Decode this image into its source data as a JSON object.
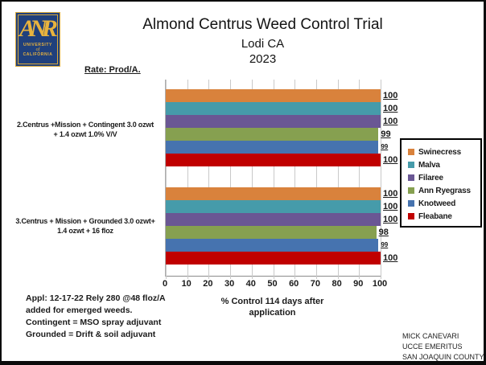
{
  "logo": {
    "monogram": "ANR",
    "line1": "UNIVERSITY",
    "line2": "of",
    "line3": "CALIFORNIA"
  },
  "header": {
    "title": "Almond Centrus Weed Control Trial",
    "subtitle": "Lodi CA",
    "year": "2023"
  },
  "rate_label": "Rate:  Prod/A.",
  "chart_data": {
    "type": "bar",
    "orientation": "horizontal",
    "title": "Almond Centrus Weed Control Trial",
    "xlabel": "% Control 114 days after application",
    "xlim": [
      0,
      100
    ],
    "grid": true,
    "legend_position": "right",
    "categories": [
      "2.Centrus +Mission + Contingent 3.0 ozwt + 1.4 ozwt 1.0% V/V",
      "3.Centrus + Mission + Grounded 3.0 ozwt+ 1.4 ozwt + 16 floz"
    ],
    "series": [
      {
        "name": "Swinecress",
        "color": "#D9823C",
        "values": [
          100,
          100
        ],
        "small_label": false
      },
      {
        "name": "Malva",
        "color": "#469BAA",
        "values": [
          100,
          100
        ],
        "small_label": false
      },
      {
        "name": "Filaree",
        "color": "#6A5794",
        "values": [
          100,
          100
        ],
        "small_label": false
      },
      {
        "name": "Ann Ryegrass",
        "color": "#86A050",
        "values": [
          99,
          98
        ],
        "small_label": false
      },
      {
        "name": "Knotweed",
        "color": "#4673AF",
        "values": [
          99,
          99
        ],
        "small_label": true
      },
      {
        "name": "Fleabane",
        "color": "#C00000",
        "values": [
          100,
          100
        ],
        "small_label": false
      }
    ]
  },
  "category_labels": [
    {
      "line1": "2.Centrus +Mission + Contingent 3.0 ozwt",
      "line2": "+ 1.4 ozwt 1.0% V/V"
    },
    {
      "line1": "3.Centrus + Mission + Grounded 3.0 ozwt+",
      "line2": "1.4 ozwt + 16 floz"
    }
  ],
  "xaxis": {
    "ticks": [
      "0",
      "10",
      "20",
      "30",
      "40",
      "50",
      "60",
      "70",
      "80",
      "90",
      "100"
    ],
    "label_line1": "% Control 114 days after",
    "label_line2": "application"
  },
  "notes_left": [
    "Appl:  12-17-22  Rely 280 @48 floz/A",
    "added for emerged weeds.",
    "Contingent = MSO spray adjuvant",
    "Grounded  = Drift & soil adjuvant"
  ],
  "credits": [
    "MICK CANEVARI",
    "UCCE  EMERITUS",
    "SAN JOAQUIN COUNTY"
  ]
}
